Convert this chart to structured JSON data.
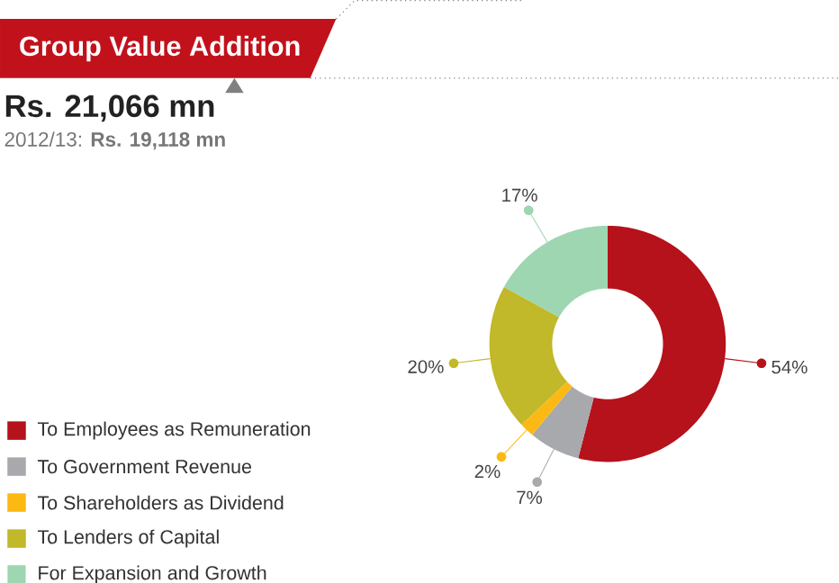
{
  "chart_data": {
    "type": "donut",
    "title": "Group Value Addition",
    "subtitle": "Rs. 21,066 mn",
    "annotations": [
      "2012/13: **Rs. 19,118 mn**"
    ],
    "categories": [
      "To Employees as Remuneration",
      "To Government Revenue",
      "To Shareholders as Dividend",
      "To Lenders of Capital",
      "For Expansion and Growth"
    ],
    "values": [
      54,
      7,
      2,
      20,
      17
    ],
    "value_labels": [
      "54%",
      "7%",
      "2%",
      "20%",
      "17%"
    ],
    "colors": [
      "#b5121b",
      "#a7a9ac",
      "#fdb913",
      "#c1b82a",
      "#9dd6b0"
    ],
    "legend": "bottom left"
  }
}
